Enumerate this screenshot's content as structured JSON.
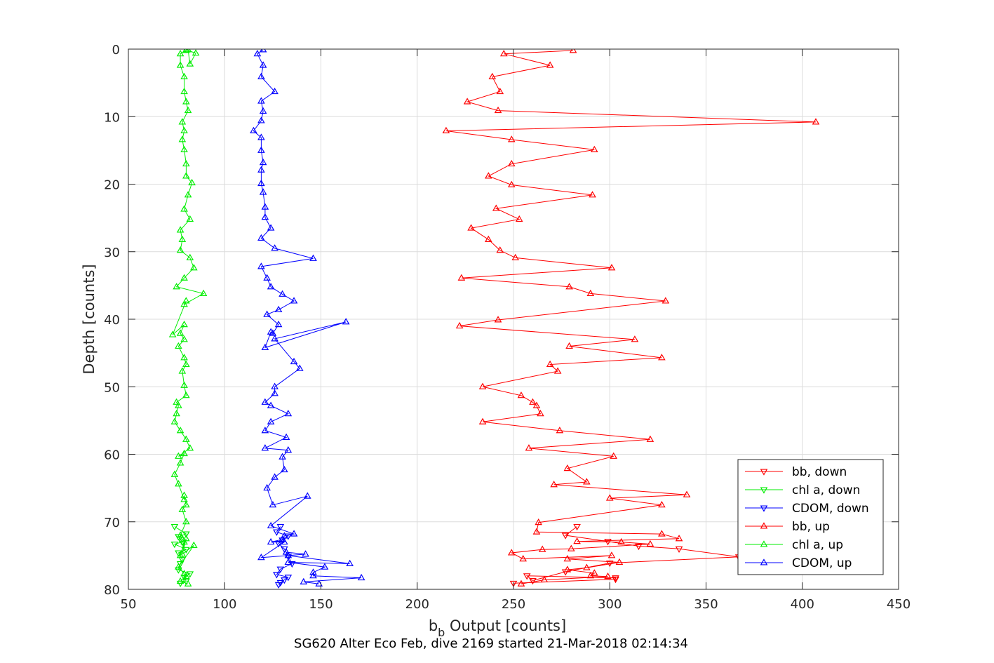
{
  "chart_data": {
    "type": "line",
    "title": "SG620 Alter Eco Feb, dive 2169 started 21-Mar-2018 02:14:34",
    "xlabel_main": "b",
    "xlabel_sub": "b",
    "xlabel_rest": " Output [counts]",
    "ylabel": "Depth [counts]",
    "xlim": [
      50,
      450
    ],
    "ylim": [
      0,
      80
    ],
    "y_reversed": true,
    "grid": true,
    "xticks": [
      50,
      100,
      150,
      200,
      250,
      300,
      350,
      400,
      450
    ],
    "yticks": [
      0,
      10,
      20,
      30,
      40,
      50,
      60,
      70,
      80
    ],
    "legend_position": "bottom-right",
    "series": [
      {
        "name": "bb, down",
        "color": "#ff0000",
        "marker": "triangle-down",
        "x": [
          283,
          277,
          299,
          315,
          336,
          367,
          300,
          277,
          260,
          257,
          303,
          303,
          250
        ],
        "y": [
          70.7,
          72.0,
          72.9,
          73.6,
          74.0,
          75.2,
          76.1,
          77.4,
          78.7,
          78.0,
          78.3,
          78.5,
          79.1
        ]
      },
      {
        "name": "chl a, down",
        "color": "#00ee00",
        "marker": "triangle-down",
        "x": [
          74,
          80,
          76,
          78,
          74,
          80,
          76,
          78,
          77,
          76,
          82,
          79,
          80,
          77
        ],
        "y": [
          70.7,
          71.8,
          72.2,
          73.0,
          73.3,
          74.1,
          74.6,
          75.6,
          76.2,
          77.1,
          77.7,
          78.2,
          78.8,
          79.1
        ]
      },
      {
        "name": "CDOM, down",
        "color": "#0000ff",
        "marker": "triangle-down",
        "x": [
          129,
          127,
          133,
          130,
          128,
          131,
          133,
          135,
          129,
          127,
          133,
          131,
          129,
          128
        ],
        "y": [
          70.7,
          71.5,
          72.1,
          72.7,
          73.2,
          74.0,
          75.1,
          76.2,
          77.0,
          77.8,
          78.2,
          78.6,
          79.0,
          79.3
        ]
      },
      {
        "name": "bb, up",
        "color": "#ff0000",
        "marker": "triangle-up",
        "x": [
          254,
          266,
          299,
          290,
          292,
          278,
          288,
          305,
          278,
          301,
          255,
          249,
          265,
          280,
          321,
          306,
          283,
          336,
          327,
          262,
          263,
          327,
          300,
          340,
          271,
          288,
          278,
          302,
          258,
          321,
          274,
          234,
          264,
          262,
          260,
          254,
          234,
          273,
          269,
          327,
          279,
          313,
          222,
          242,
          329,
          290,
          279,
          223,
          301,
          251,
          243,
          237,
          228,
          253,
          241,
          291,
          249,
          237,
          249,
          292,
          249,
          215,
          407,
          242,
          226,
          243,
          239,
          269,
          245,
          281
        ],
        "y": [
          79.2,
          78.6,
          78.1,
          78.0,
          77.6,
          77.1,
          76.8,
          76.0,
          75.5,
          75.0,
          75.5,
          74.6,
          74.1,
          74.0,
          73.3,
          73.0,
          72.9,
          72.5,
          71.8,
          71.5,
          70.1,
          67.5,
          66.5,
          66.0,
          64.5,
          64.1,
          62.1,
          60.3,
          59.1,
          57.8,
          56.5,
          55.2,
          54.0,
          52.8,
          52.3,
          51.3,
          50.0,
          47.7,
          46.7,
          45.7,
          44.0,
          43.0,
          41.0,
          40.1,
          37.3,
          36.2,
          35.2,
          33.9,
          32.4,
          30.9,
          29.8,
          28.2,
          26.5,
          25.2,
          23.6,
          21.6,
          20.1,
          18.8,
          17.0,
          14.9,
          13.4,
          12.1,
          10.8,
          9.1,
          7.8,
          6.3,
          4.1,
          2.4,
          0.7,
          0.2
        ]
      },
      {
        "name": "chl a, up",
        "color": "#00ee00",
        "marker": "triangle-up",
        "x": [
          81,
          77,
          80,
          79,
          76,
          84,
          78,
          80,
          77,
          79,
          78,
          77,
          80,
          78,
          80,
          79,
          79,
          76,
          74,
          77,
          79,
          76,
          82,
          80,
          77,
          74,
          75,
          76,
          75,
          80,
          79,
          78,
          80,
          79,
          76,
          79,
          77,
          79,
          73,
          80,
          79,
          89,
          75,
          79,
          84,
          82,
          77,
          78,
          77,
          82,
          79,
          81,
          83,
          80,
          80,
          79,
          78,
          79,
          78,
          81,
          80,
          79,
          79,
          77,
          77,
          80,
          81,
          82,
          85,
          80
        ],
        "y": [
          79.2,
          78.8,
          78.1,
          77.7,
          76.7,
          73.5,
          74.8,
          72.5,
          75.0,
          73.0,
          72.6,
          72.0,
          70.0,
          68.2,
          67.5,
          66.1,
          66.7,
          64.4,
          63.0,
          61.3,
          59.9,
          60.3,
          59.1,
          57.8,
          56.5,
          55.2,
          54.0,
          52.8,
          52.3,
          51.3,
          49.8,
          47.7,
          46.7,
          45.7,
          44.0,
          43.0,
          42.1,
          40.8,
          42.3,
          37.3,
          37.8,
          36.2,
          35.2,
          33.9,
          32.4,
          30.9,
          29.8,
          28.2,
          26.8,
          25.2,
          23.7,
          21.6,
          19.8,
          18.8,
          17.0,
          14.9,
          13.4,
          12.1,
          10.8,
          9.1,
          7.8,
          6.3,
          4.1,
          2.4,
          0.7,
          0.2,
          0.1,
          2.2,
          0.6,
          0.1
        ],
        "x_fix": [
          81,
          77,
          80,
          79,
          76,
          84,
          78,
          80,
          77,
          79,
          78,
          77,
          80,
          78,
          80,
          79,
          79,
          76,
          74,
          77,
          79,
          76,
          82,
          80,
          77,
          74,
          75,
          76,
          75,
          80,
          79,
          78,
          80,
          79,
          76,
          79,
          77,
          79,
          73,
          80,
          79,
          89,
          75,
          79,
          84,
          82,
          77,
          78,
          77,
          82,
          79,
          81,
          83,
          80,
          80,
          79,
          78,
          79,
          78,
          81,
          80,
          79,
          79,
          77,
          77,
          80,
          81,
          82,
          85,
          80
        ]
      },
      {
        "name": "CDOM, up",
        "color": "#0000ff",
        "marker": "triangle-up",
        "x": [
          149,
          141,
          171,
          146,
          146,
          152,
          133,
          165,
          133,
          132,
          142,
          119,
          131,
          124,
          130,
          131,
          136,
          124,
          143,
          125,
          122,
          126,
          131,
          130,
          133,
          121,
          132,
          121,
          124,
          133,
          124,
          121,
          126,
          126,
          139,
          136,
          126,
          163,
          121,
          124,
          125,
          128,
          122,
          128,
          136,
          130,
          124,
          122,
          119,
          146,
          126,
          119,
          124,
          121,
          121,
          120,
          119,
          119,
          120,
          119,
          119,
          115,
          119,
          120,
          119,
          126,
          119,
          120,
          117,
          120
        ],
        "y": [
          79.2,
          78.9,
          78.3,
          78.0,
          77.5,
          76.7,
          76.0,
          76.2,
          75.0,
          74.5,
          74.8,
          75.3,
          73.0,
          73.0,
          72.6,
          72.1,
          71.8,
          70.6,
          66.2,
          67.5,
          65.0,
          63.4,
          62.3,
          60.4,
          59.4,
          59.1,
          57.5,
          56.5,
          55.2,
          54.0,
          52.8,
          52.3,
          51.0,
          50.0,
          47.3,
          46.3,
          42.9,
          40.4,
          44.2,
          41.9,
          42.1,
          40.8,
          39.3,
          38.6,
          37.3,
          36.3,
          35.2,
          33.9,
          32.2,
          31.0,
          29.5,
          28.0,
          26.5,
          24.9,
          23.4,
          21.2,
          19.9,
          17.9,
          16.8,
          15.0,
          13.1,
          12.1,
          10.6,
          9.2,
          7.7,
          6.3,
          4.1,
          2.4,
          0.7,
          0.1
        ]
      }
    ]
  }
}
